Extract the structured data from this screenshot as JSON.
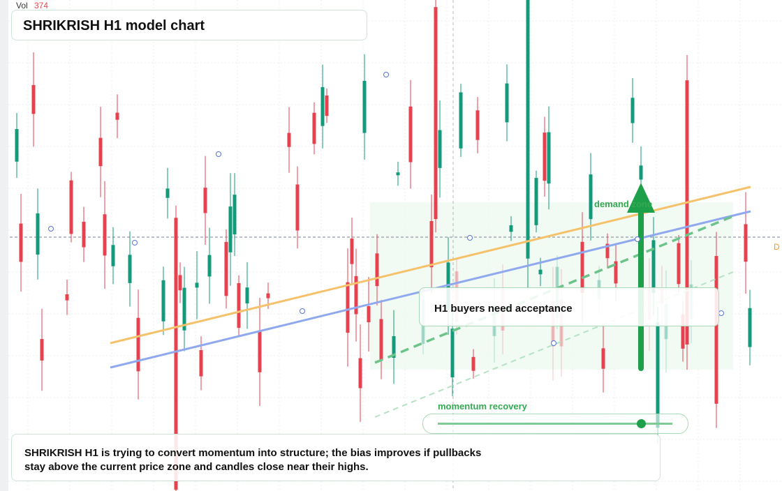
{
  "volume": {
    "label": "Vol",
    "value": "374"
  },
  "header": {
    "title": "SHRIKRISH H1 model chart"
  },
  "annotations": {
    "zone": "demand zone",
    "callout": "H1 buyers need acceptance",
    "slider": "momentum recovery",
    "edge_marker": "D"
  },
  "note": {
    "lines": [
      "SHRIKRISH H1 is trying to convert momentum into structure; the bias improves if pullbacks",
      "stay above the current price zone and candles close near their highs."
    ]
  }
}
